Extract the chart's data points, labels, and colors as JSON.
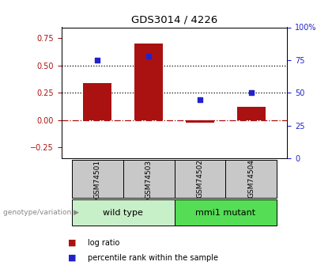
{
  "title": "GDS3014 / 4226",
  "samples": [
    "GSM74501",
    "GSM74503",
    "GSM74502",
    "GSM74504"
  ],
  "log_ratio": [
    0.34,
    0.7,
    -0.02,
    0.12
  ],
  "percentile_rank": [
    75,
    78,
    45,
    50
  ],
  "groups": [
    {
      "label": "wild type",
      "indices": [
        0,
        1
      ],
      "color": "#c8f0c8"
    },
    {
      "label": "mmi1 mutant",
      "indices": [
        2,
        3
      ],
      "color": "#55dd55"
    }
  ],
  "bar_color": "#aa1111",
  "dot_color": "#2222cc",
  "ylim_left": [
    -0.35,
    0.85
  ],
  "ylim_right": [
    0,
    100
  ],
  "yticks_left": [
    -0.25,
    0,
    0.25,
    0.5,
    0.75
  ],
  "yticks_right": [
    0,
    25,
    50,
    75,
    100
  ],
  "hline_dotted": [
    0.25,
    0.5
  ],
  "hline_dash_dot": 0.0,
  "bar_width": 0.55,
  "background_color": "#ffffff",
  "gray_color": "#c8c8c8",
  "legend_log_ratio": "log ratio",
  "legend_percentile": "percentile rank within the sample",
  "genotype_label": "genotype/variation"
}
